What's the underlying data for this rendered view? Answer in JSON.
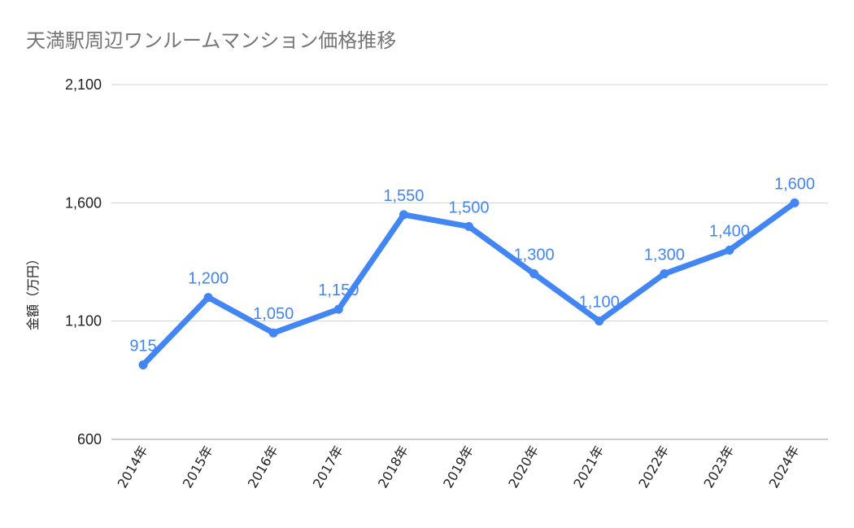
{
  "chart_data": {
    "type": "line",
    "title": "天満駅周辺ワンルームマンション価格推移",
    "xlabel": "",
    "ylabel": "金額（万円）",
    "categories": [
      "2014年",
      "2015年",
      "2016年",
      "2017年",
      "2018年",
      "2019年",
      "2020年",
      "2021年",
      "2022年",
      "2023年",
      "2024年"
    ],
    "values": [
      915,
      1200,
      1050,
      1150,
      1550,
      1500,
      1300,
      1100,
      1300,
      1400,
      1600
    ],
    "data_labels": [
      "915",
      "1,200",
      "1,050",
      "1,150",
      "1,550",
      "1,500",
      "1,300",
      "1,100",
      "1,300",
      "1,400",
      "1,600"
    ],
    "ylim": [
      600,
      2100
    ],
    "yticks": [
      600,
      1100,
      1600,
      2100
    ],
    "ytick_labels": [
      "600",
      "1,100",
      "1,600",
      "2,100"
    ],
    "grid": true,
    "legend": "none",
    "line_color": "#4285f4"
  }
}
